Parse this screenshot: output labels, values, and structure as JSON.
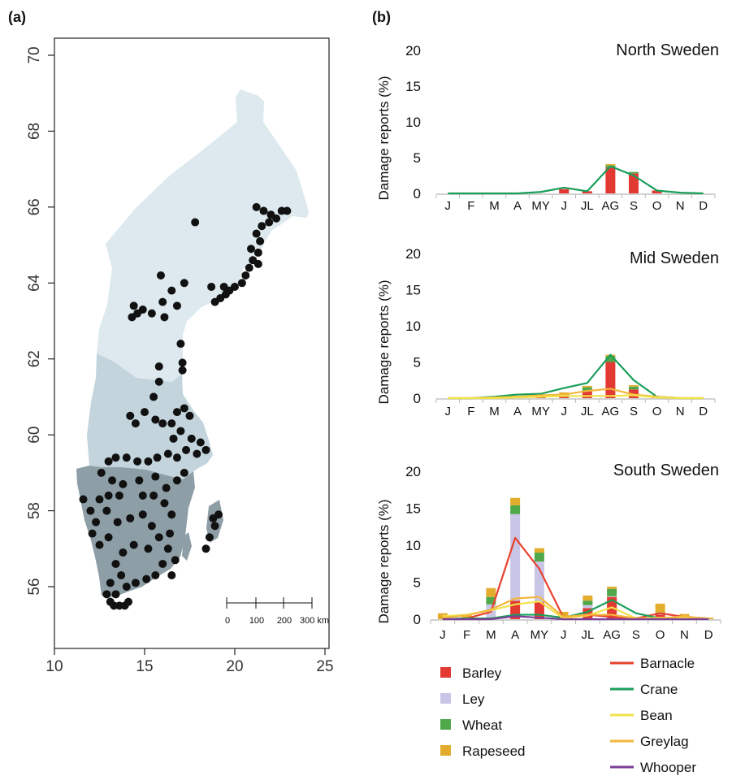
{
  "panels": {
    "a_label": "(a)",
    "b_label": "(b)"
  },
  "map": {
    "type": "scatter",
    "x_ticks": [
      "10",
      "15",
      "20",
      "25"
    ],
    "y_ticks": [
      "56",
      "58",
      "60",
      "62",
      "64",
      "66",
      "68",
      "70"
    ],
    "xlim": [
      10,
      25.5
    ],
    "ylim": [
      55,
      70.2
    ],
    "scale_bar_labels": [
      "0",
      "100",
      "200",
      "300 km"
    ],
    "region_colors": {
      "north": "#dde9ee",
      "mid": "#c3d4dc",
      "south": "#8d9ea6"
    },
    "point_color": "#111111",
    "locations": [
      [
        17.8,
        65.6
      ],
      [
        21.2,
        66.0
      ],
      [
        21.6,
        65.9
      ],
      [
        22.0,
        65.8
      ],
      [
        22.3,
        65.7
      ],
      [
        22.6,
        65.9
      ],
      [
        22.9,
        65.9
      ],
      [
        21.9,
        65.6
      ],
      [
        21.5,
        65.5
      ],
      [
        21.2,
        65.3
      ],
      [
        21.4,
        65.1
      ],
      [
        20.9,
        64.9
      ],
      [
        21.3,
        64.8
      ],
      [
        21.0,
        64.6
      ],
      [
        21.3,
        64.5
      ],
      [
        20.8,
        64.4
      ],
      [
        20.6,
        64.2
      ],
      [
        20.4,
        64.0
      ],
      [
        20.0,
        63.9
      ],
      [
        19.7,
        63.8
      ],
      [
        19.5,
        63.7
      ],
      [
        19.2,
        63.6
      ],
      [
        18.9,
        63.5
      ],
      [
        19.4,
        63.9
      ],
      [
        18.7,
        63.9
      ],
      [
        15.9,
        64.2
      ],
      [
        17.2,
        64.0
      ],
      [
        16.5,
        63.8
      ],
      [
        16.0,
        63.5
      ],
      [
        14.4,
        63.4
      ],
      [
        14.6,
        63.2
      ],
      [
        14.3,
        63.1
      ],
      [
        14.9,
        63.3
      ],
      [
        15.4,
        63.2
      ],
      [
        16.1,
        63.1
      ],
      [
        16.8,
        63.4
      ],
      [
        17.0,
        62.4
      ],
      [
        17.1,
        61.9
      ],
      [
        17.1,
        61.7
      ],
      [
        15.8,
        61.8
      ],
      [
        15.8,
        61.4
      ],
      [
        15.5,
        61.0
      ],
      [
        14.2,
        60.5
      ],
      [
        14.5,
        60.3
      ],
      [
        15.0,
        60.6
      ],
      [
        15.6,
        60.4
      ],
      [
        16.0,
        60.3
      ],
      [
        16.5,
        60.3
      ],
      [
        16.8,
        60.6
      ],
      [
        17.2,
        60.7
      ],
      [
        17.5,
        60.5
      ],
      [
        17.0,
        60.1
      ],
      [
        16.6,
        59.9
      ],
      [
        17.6,
        59.9
      ],
      [
        18.1,
        59.8
      ],
      [
        18.4,
        59.6
      ],
      [
        17.9,
        59.5
      ],
      [
        17.3,
        59.6
      ],
      [
        16.8,
        59.4
      ],
      [
        16.3,
        59.5
      ],
      [
        15.7,
        59.4
      ],
      [
        15.2,
        59.3
      ],
      [
        14.6,
        59.3
      ],
      [
        14.0,
        59.4
      ],
      [
        13.4,
        59.4
      ],
      [
        13.0,
        59.3
      ],
      [
        12.6,
        59.0
      ],
      [
        13.2,
        58.8
      ],
      [
        13.8,
        58.7
      ],
      [
        14.7,
        58.8
      ],
      [
        15.6,
        58.9
      ],
      [
        16.2,
        58.6
      ],
      [
        16.8,
        58.8
      ],
      [
        17.2,
        59.0
      ],
      [
        11.6,
        58.3
      ],
      [
        12.0,
        58.0
      ],
      [
        12.5,
        58.3
      ],
      [
        13.0,
        58.4
      ],
      [
        13.6,
        58.4
      ],
      [
        12.9,
        58.0
      ],
      [
        12.3,
        57.7
      ],
      [
        12.1,
        57.4
      ],
      [
        12.5,
        57.1
      ],
      [
        13.0,
        57.3
      ],
      [
        13.5,
        57.7
      ],
      [
        14.2,
        57.8
      ],
      [
        14.9,
        58.4
      ],
      [
        15.5,
        58.4
      ],
      [
        16.1,
        58.2
      ],
      [
        16.5,
        57.9
      ],
      [
        16.4,
        57.4
      ],
      [
        16.3,
        57.0
      ],
      [
        16.0,
        56.6
      ],
      [
        15.6,
        56.3
      ],
      [
        15.1,
        56.2
      ],
      [
        14.5,
        56.1
      ],
      [
        14.0,
        56.0
      ],
      [
        13.7,
        56.3
      ],
      [
        13.4,
        56.6
      ],
      [
        13.1,
        56.1
      ],
      [
        12.9,
        55.8
      ],
      [
        13.1,
        55.6
      ],
      [
        13.3,
        55.5
      ],
      [
        13.6,
        55.5
      ],
      [
        13.9,
        55.5
      ],
      [
        14.1,
        55.6
      ],
      [
        13.4,
        55.8
      ],
      [
        13.8,
        56.9
      ],
      [
        14.4,
        57.1
      ],
      [
        15.2,
        57.0
      ],
      [
        15.4,
        57.6
      ],
      [
        14.9,
        57.9
      ],
      [
        18.9,
        57.6
      ],
      [
        18.6,
        57.3
      ],
      [
        18.4,
        57.0
      ],
      [
        19.1,
        57.9
      ],
      [
        18.8,
        57.8
      ],
      [
        16.7,
        56.7
      ],
      [
        16.5,
        56.3
      ],
      [
        15.8,
        57.3
      ]
    ]
  },
  "charts": {
    "ylabel": "Damage reports (%)",
    "months": [
      "J",
      "F",
      "M",
      "A",
      "MY",
      "J",
      "JL",
      "AG",
      "S",
      "O",
      "N",
      "D"
    ],
    "colors": {
      "Barley": "#e23a32",
      "Ley": "#c9c5e6",
      "Wheat": "#4fa84a",
      "Rapeseed": "#e3ac2c",
      "Barnacle": "#e8412f",
      "Crane": "#1a9e5a",
      "Bean": "#f2e24a",
      "Greylag": "#f3b63b",
      "Whooper": "#7a3f99"
    }
  },
  "chart_data": [
    {
      "type": "bar",
      "title": "North Sweden",
      "ylabel": "Damage reports (%)",
      "ylim": [
        0,
        20
      ],
      "yticks": [
        0,
        5,
        10,
        15,
        20
      ],
      "categories": [
        "J",
        "F",
        "M",
        "A",
        "MY",
        "J",
        "JL",
        "AG",
        "S",
        "O",
        "N",
        "D"
      ],
      "stacked_bars": [
        {
          "name": "Barley",
          "values": [
            0,
            0,
            0,
            0,
            0,
            0.6,
            0.3,
            3.6,
            2.8,
            0.4,
            0,
            0
          ]
        },
        {
          "name": "Ley",
          "values": [
            0,
            0,
            0,
            0,
            0,
            0,
            0,
            0,
            0,
            0,
            0,
            0
          ]
        },
        {
          "name": "Wheat",
          "values": [
            0,
            0,
            0,
            0,
            0,
            0,
            0,
            0.3,
            0.2,
            0,
            0,
            0
          ]
        },
        {
          "name": "Rapeseed",
          "values": [
            0,
            0,
            0,
            0,
            0,
            0,
            0,
            0.2,
            0,
            0,
            0,
            0
          ]
        }
      ],
      "lines": [
        {
          "name": "Crane",
          "values": [
            0,
            0,
            0,
            0,
            0.2,
            0.8,
            0.3,
            3.8,
            2.5,
            0.4,
            0.1,
            0
          ]
        }
      ]
    },
    {
      "type": "bar",
      "title": "Mid Sweden",
      "ylabel": "Damage reports (%)",
      "ylim": [
        0,
        20
      ],
      "yticks": [
        0,
        5,
        10,
        15,
        20
      ],
      "categories": [
        "J",
        "F",
        "M",
        "A",
        "MY",
        "J",
        "JL",
        "AG",
        "S",
        "O",
        "N",
        "D"
      ],
      "stacked_bars": [
        {
          "name": "Barley",
          "values": [
            0,
            0,
            0,
            0,
            0.2,
            0.4,
            1.0,
            5.0,
            1.2,
            0.2,
            0,
            0
          ]
        },
        {
          "name": "Ley",
          "values": [
            0,
            0,
            0,
            0,
            0,
            0,
            0,
            0,
            0,
            0,
            0,
            0
          ]
        },
        {
          "name": "Wheat",
          "values": [
            0,
            0,
            0,
            0,
            0,
            0.2,
            0.5,
            0.8,
            0.4,
            0,
            0,
            0
          ]
        },
        {
          "name": "Rapeseed",
          "values": [
            0,
            0,
            0,
            0,
            0.1,
            0.2,
            0.2,
            0.2,
            0.2,
            0,
            0,
            0
          ]
        }
      ],
      "lines": [
        {
          "name": "Crane",
          "values": [
            0,
            0,
            0.2,
            0.5,
            0.6,
            1.4,
            2.1,
            6.0,
            2.5,
            0.2,
            0,
            0
          ]
        },
        {
          "name": "Greylag",
          "values": [
            0,
            0,
            0.1,
            0.2,
            0.4,
            0.5,
            1.0,
            1.3,
            0.5,
            0.2,
            0,
            0
          ]
        },
        {
          "name": "Bean",
          "values": [
            0,
            0,
            0,
            0.1,
            0.2,
            0.3,
            0.3,
            0.3,
            0.4,
            0.1,
            0,
            0
          ]
        }
      ]
    },
    {
      "type": "bar",
      "title": "South Sweden",
      "ylabel": "Damage reports (%)",
      "ylim": [
        0,
        20
      ],
      "yticks": [
        0,
        5,
        10,
        15,
        20
      ],
      "categories": [
        "J",
        "F",
        "M",
        "A",
        "MY",
        "J",
        "JL",
        "AG",
        "S",
        "O",
        "N",
        "D"
      ],
      "stacked_bars": [
        {
          "name": "Barley",
          "values": [
            0,
            0,
            0.2,
            2.5,
            2.3,
            0.2,
            1.5,
            3.0,
            0.1,
            0.6,
            0,
            0
          ]
        },
        {
          "name": "Ley",
          "values": [
            0,
            0,
            1.8,
            11.7,
            5.5,
            0.2,
            0.4,
            0.1,
            0,
            0.2,
            0,
            0
          ]
        },
        {
          "name": "Wheat",
          "values": [
            0,
            0,
            1.0,
            1.2,
            1.2,
            0,
            0.6,
            1.0,
            0,
            0.1,
            0,
            0
          ]
        },
        {
          "name": "Rapeseed",
          "values": [
            0.8,
            0.7,
            1.2,
            1.0,
            0.6,
            0.6,
            0.7,
            0.3,
            0.2,
            1.2,
            0.7,
            0.2
          ]
        }
      ],
      "lines": [
        {
          "name": "Barnacle",
          "values": [
            0,
            0.1,
            1.0,
            11.0,
            6.8,
            0.2,
            0.6,
            0.3,
            0.1,
            0.8,
            0.3,
            0.1
          ]
        },
        {
          "name": "Crane",
          "values": [
            0,
            0.1,
            0.1,
            0.6,
            0.6,
            0.2,
            1.0,
            2.6,
            0.8,
            0.1,
            0.1,
            0
          ]
        },
        {
          "name": "Bean",
          "values": [
            0.4,
            0.6,
            1.2,
            2.0,
            2.4,
            0.1,
            0.5,
            1.6,
            0.1,
            0.2,
            0.2,
            0.1
          ]
        },
        {
          "name": "Greylag",
          "values": [
            0.2,
            0.5,
            1.3,
            2.8,
            3.0,
            0.3,
            0.6,
            0.6,
            0.1,
            0.1,
            0.4,
            0
          ]
        },
        {
          "name": "Whooper",
          "values": [
            0,
            0,
            0,
            0.4,
            0.2,
            0,
            0,
            0,
            0,
            0,
            0,
            0
          ]
        }
      ]
    }
  ],
  "legend": {
    "bars": [
      "Barley",
      "Ley",
      "Wheat",
      "Rapeseed"
    ],
    "lines": [
      "Barnacle",
      "Crane",
      "Bean",
      "Greylag",
      "Whooper"
    ]
  }
}
